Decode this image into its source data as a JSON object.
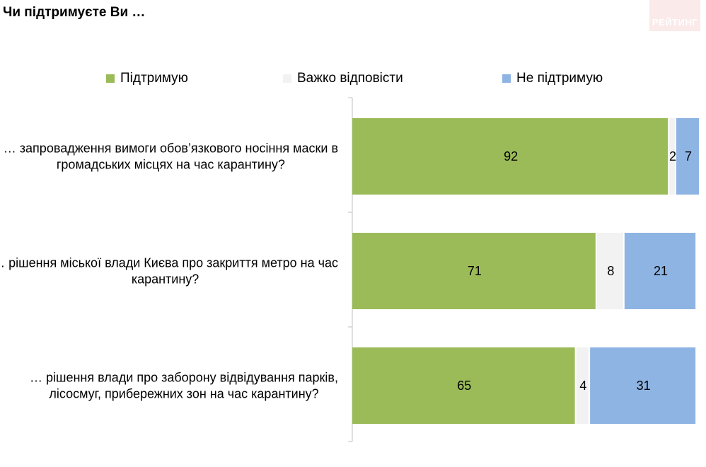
{
  "title": "Чи підтримуєте Ви …",
  "logo_text": "РЕЙТИНГ",
  "legend": [
    {
      "label": "Підтримую",
      "color": "#9bbb59"
    },
    {
      "label": "Важко відповісти",
      "color": "#f2f2f2"
    },
    {
      "label": "Не підтримую",
      "color": "#8eb4e3"
    }
  ],
  "chart_data": {
    "type": "bar",
    "orientation": "horizontal",
    "stacked": true,
    "categories": [
      [
        "… запровадження вимоги обов’язкового носіння маски в",
        "громадських місцях на час карантину?"
      ],
      [
        "… рішення міської влади Києва про закриття метро на час",
        "карантину?"
      ],
      [
        "… рішення влади про заборону відвідування парків,",
        "лісосмуг, прибережних зон на час карантину?"
      ]
    ],
    "series": [
      {
        "name": "Підтримую",
        "color": "#9bbb59",
        "values": [
          92,
          71,
          65
        ]
      },
      {
        "name": "Важко відповісти",
        "color": "#f2f2f2",
        "values": [
          2,
          8,
          4
        ]
      },
      {
        "name": "Не підтримую",
        "color": "#8eb4e3",
        "values": [
          7,
          21,
          31
        ]
      }
    ],
    "xlim": [
      0,
      101
    ],
    "legend_position": "top",
    "grid": false
  }
}
